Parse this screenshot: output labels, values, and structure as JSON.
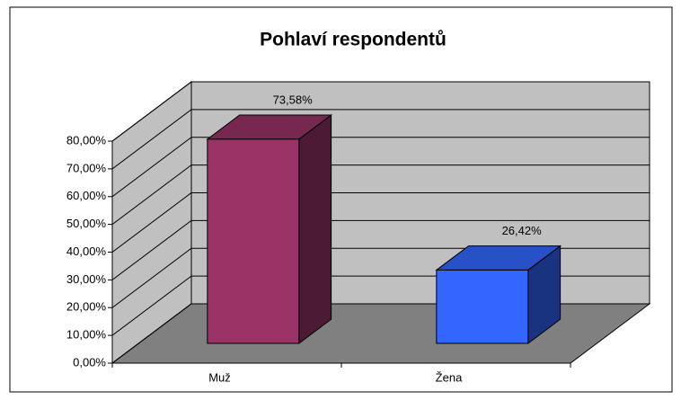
{
  "chart_data": {
    "type": "bar3d",
    "title": "Pohlaví respondentů",
    "categories": [
      "Muž",
      "Žena"
    ],
    "values": [
      73.58,
      26.42
    ],
    "value_labels": [
      "73,58%",
      "26,42%"
    ],
    "colors": [
      "#993366",
      "#3366ff"
    ],
    "ylim": [
      0,
      80
    ],
    "yticks": [
      {
        "value": 0,
        "label": "0,00%"
      },
      {
        "value": 10,
        "label": "10,00%"
      },
      {
        "value": 20,
        "label": "20,00%"
      },
      {
        "value": 30,
        "label": "30,00%"
      },
      {
        "value": 40,
        "label": "40,00%"
      },
      {
        "value": 50,
        "label": "50,00%"
      },
      {
        "value": 60,
        "label": "60,00%"
      },
      {
        "value": 70,
        "label": "70,00%"
      },
      {
        "value": 80,
        "label": "80,00%"
      }
    ],
    "grid": true
  }
}
